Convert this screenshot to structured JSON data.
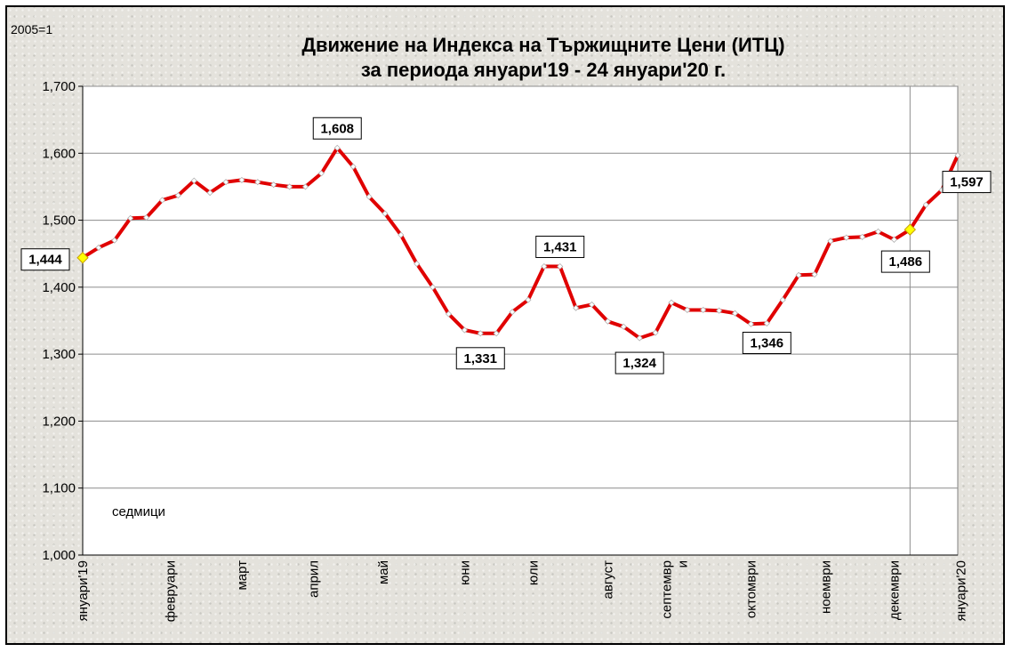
{
  "chart_data": {
    "type": "line",
    "title": "Движение на Индекса на Тържищните Цени (ИТЦ)",
    "subtitle": "за периода януари'19 - 24 януари'20 г.",
    "corner_label": "2005=1",
    "note": "седмици",
    "ylim": [
      1.0,
      1.7
    ],
    "y_ticks": [
      {
        "v": 1.0,
        "label": "1,000"
      },
      {
        "v": 1.1,
        "label": "1,100"
      },
      {
        "v": 1.2,
        "label": "1,200"
      },
      {
        "v": 1.3,
        "label": "1,300"
      },
      {
        "v": 1.4,
        "label": "1,400"
      },
      {
        "v": 1.5,
        "label": "1,500"
      },
      {
        "v": 1.6,
        "label": "1,600"
      },
      {
        "v": 1.7,
        "label": "1,700"
      }
    ],
    "x_month_labels": [
      {
        "week": 0,
        "lines": [
          "януари'19"
        ]
      },
      {
        "week": 5.5,
        "lines": [
          "февруари"
        ]
      },
      {
        "week": 10,
        "lines": [
          "март"
        ]
      },
      {
        "week": 14.5,
        "lines": [
          "април"
        ]
      },
      {
        "week": 18.9,
        "lines": [
          "май"
        ]
      },
      {
        "week": 24,
        "lines": [
          "юни"
        ]
      },
      {
        "week": 28.3,
        "lines": [
          "юли"
        ]
      },
      {
        "week": 33,
        "lines": [
          "август"
        ]
      },
      {
        "week": 37.2,
        "lines": [
          "септемвр",
          "и"
        ]
      },
      {
        "week": 42,
        "lines": [
          "октомври"
        ]
      },
      {
        "week": 46.7,
        "lines": [
          "ноември"
        ]
      },
      {
        "week": 51,
        "lines": [
          "декември"
        ]
      },
      {
        "week": 55.2,
        "lines": [
          "януари'20"
        ]
      }
    ],
    "series": [
      {
        "color": "#e00000",
        "values": [
          1.444,
          1.459,
          1.47,
          1.503,
          1.504,
          1.53,
          1.537,
          1.559,
          1.541,
          1.557,
          1.56,
          1.557,
          1.553,
          1.55,
          1.55,
          1.57,
          1.608,
          1.58,
          1.535,
          1.51,
          1.478,
          1.435,
          1.4,
          1.36,
          1.336,
          1.331,
          1.331,
          1.363,
          1.381,
          1.431,
          1.431,
          1.369,
          1.374,
          1.349,
          1.341,
          1.324,
          1.332,
          1.377,
          1.366,
          1.366,
          1.365,
          1.361,
          1.345,
          1.346,
          1.381,
          1.418,
          1.419,
          1.469,
          1.474,
          1.475,
          1.483,
          1.471,
          1.486,
          1.523,
          1.545,
          1.597
        ]
      }
    ],
    "highlighted_points": [
      {
        "week": 0,
        "color": "#ffff00"
      },
      {
        "week": 52,
        "color": "#ffff00"
      }
    ],
    "data_labels": [
      {
        "week": 0,
        "text": "1,444"
      },
      {
        "week": 16,
        "text": "1,608"
      },
      {
        "week": 25,
        "text": "1,331"
      },
      {
        "week": 30,
        "text": "1,431"
      },
      {
        "week": 35,
        "text": "1,324"
      },
      {
        "week": 43,
        "text": "1,346"
      },
      {
        "week": 52,
        "text": "1,486"
      },
      {
        "week": 55,
        "text": "1,597"
      }
    ],
    "grid": "horizontal",
    "legend": "none"
  }
}
